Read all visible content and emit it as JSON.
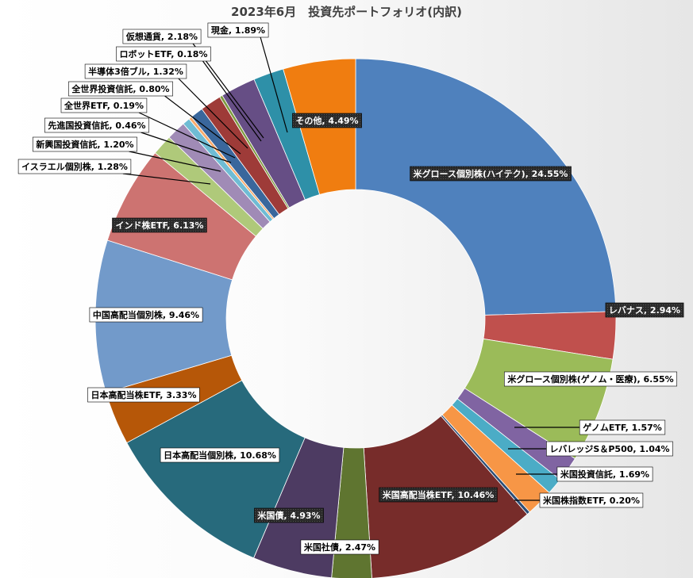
{
  "chart_data": {
    "type": "pie",
    "title": "2023年6月　投資先ポートフォリオ(内訳)",
    "slices": [
      {
        "label": "米グロース個別株(ハイテク)",
        "pct": "24.55%",
        "value": 24.55,
        "color": "#4F81BD",
        "label_style": "dark"
      },
      {
        "label": "レバナス",
        "pct": "2.94%",
        "value": 2.94,
        "color": "#C0504D",
        "label_style": "dark"
      },
      {
        "label": "米グロース個別株(ゲノム・医療)",
        "pct": "6.55%",
        "value": 6.55,
        "color": "#9BBB59",
        "label_style": "white"
      },
      {
        "label": "ゲノムETF",
        "pct": "1.57%",
        "value": 1.57,
        "color": "#8064A2",
        "label_style": "white"
      },
      {
        "label": "レバレッジS＆P500",
        "pct": "1.04%",
        "value": 1.04,
        "color": "#4BACC6",
        "label_style": "white"
      },
      {
        "label": "米国投資信託",
        "pct": "1.69%",
        "value": 1.69,
        "color": "#F79646",
        "label_style": "white"
      },
      {
        "label": "米国株指数ETF",
        "pct": "0.20%",
        "value": 0.2,
        "color": "#2C4D75",
        "label_style": "white"
      },
      {
        "label": "米国高配当株ETF",
        "pct": "10.46%",
        "value": 10.46,
        "color": "#772C2A",
        "label_style": "dark"
      },
      {
        "label": "米国社債",
        "pct": "2.47%",
        "value": 2.47,
        "color": "#5F7530",
        "label_style": "white"
      },
      {
        "label": "米国債",
        "pct": "4.93%",
        "value": 4.93,
        "color": "#4D3B62",
        "label_style": "dark"
      },
      {
        "label": "日本高配当個別株",
        "pct": "10.68%",
        "value": 10.68,
        "color": "#276A7C",
        "label_style": "white"
      },
      {
        "label": "日本高配当株ETF",
        "pct": "3.33%",
        "value": 3.33,
        "color": "#B65708",
        "label_style": "white"
      },
      {
        "label": "中国高配当個別株",
        "pct": "9.46%",
        "value": 9.46,
        "color": "#729ACA",
        "label_style": "white"
      },
      {
        "label": "インド株ETF",
        "pct": "6.13%",
        "value": 6.13,
        "color": "#CD7371",
        "label_style": "dark"
      },
      {
        "label": "イスラエル個別株",
        "pct": "1.28%",
        "value": 1.28,
        "color": "#AFC97A",
        "label_style": "white"
      },
      {
        "label": "新興国投資信託",
        "pct": "1.20%",
        "value": 1.2,
        "color": "#A08BB6",
        "label_style": "white"
      },
      {
        "label": "先進国投資信託",
        "pct": "0.46%",
        "value": 0.46,
        "color": "#6FBCD4",
        "label_style": "white"
      },
      {
        "label": "全世界ETF",
        "pct": "0.19%",
        "value": 0.19,
        "color": "#F9AB6B",
        "label_style": "white"
      },
      {
        "label": "全世界投資信託",
        "pct": "0.80%",
        "value": 0.8,
        "color": "#3A679C",
        "label_style": "white"
      },
      {
        "label": "半導体3倍ブル",
        "pct": "1.32%",
        "value": 1.32,
        "color": "#9E3B38",
        "label_style": "white"
      },
      {
        "label": "ロボットETF",
        "pct": "0.18%",
        "value": 0.18,
        "color": "#7E9B40",
        "label_style": "white"
      },
      {
        "label": "仮想通貨",
        "pct": "2.18%",
        "value": 2.18,
        "color": "#664E85",
        "label_style": "white"
      },
      {
        "label": "現金",
        "pct": "1.89%",
        "value": 1.89,
        "color": "#2E90A8",
        "label_style": "white"
      },
      {
        "label": "その他",
        "pct": "4.49%",
        "value": 4.49,
        "color": "#F07D10",
        "label_style": "dark"
      }
    ],
    "legend": "none"
  }
}
